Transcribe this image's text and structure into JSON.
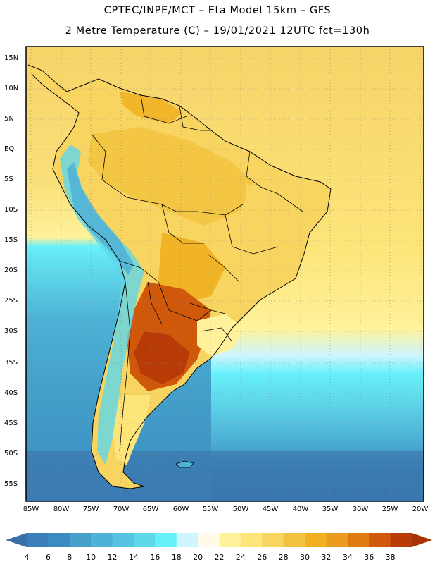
{
  "title_line1": "CPTEC/INPE/MCT –  Eta Model 15km – GFS",
  "title_line2": "2 Metre Temperature (C) – 19/01/2021 12UTC fct=130h",
  "lat_labels": [
    "15N",
    "10N",
    "5N",
    "EQ",
    "5S",
    "10S",
    "15S",
    "20S",
    "25S",
    "30S",
    "35S",
    "40S",
    "45S",
    "50S",
    "55S"
  ],
  "lon_labels": [
    "85W",
    "80W",
    "75W",
    "70W",
    "65W",
    "60W",
    "55W",
    "50W",
    "45W",
    "40W",
    "35W",
    "30W",
    "25W",
    "20W"
  ],
  "colorbar": {
    "labels": [
      "4",
      "6",
      "8",
      "10",
      "12",
      "14",
      "16",
      "18",
      "20",
      "22",
      "24",
      "26",
      "28",
      "30",
      "32",
      "34",
      "36",
      "38"
    ],
    "colors": [
      "#3a7fb8",
      "#3a8cc0",
      "#44a0ca",
      "#4eb2d6",
      "#56c4e0",
      "#5fd7ea",
      "#66f0fa",
      "#cdf6ff",
      "#fffbe6",
      "#fff29a",
      "#fde57a",
      "#f8d460",
      "#f2c340",
      "#f0b020",
      "#ec9a20",
      "#e07a12",
      "#d0580a",
      "#b83a06"
    ],
    "low_color": "#3a6ea8",
    "high_color": "#a83206"
  }
}
